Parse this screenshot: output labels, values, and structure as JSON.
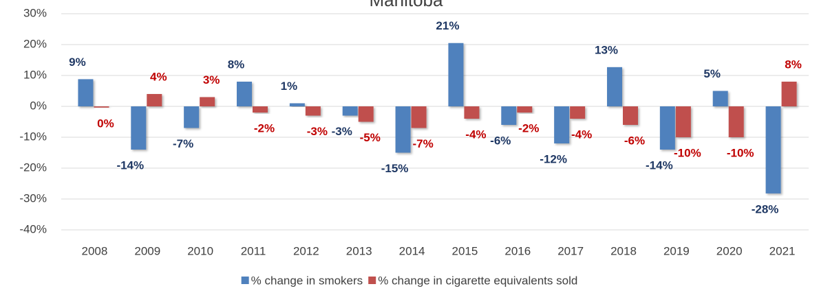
{
  "chart_data": {
    "type": "bar",
    "title": "Manitoba",
    "categories": [
      "2008",
      "2009",
      "2010",
      "2011",
      "2012",
      "2013",
      "2014",
      "2015",
      "2016",
      "2017",
      "2018",
      "2019",
      "2020",
      "2021"
    ],
    "series": [
      {
        "name": "% change in smokers",
        "color": "#4f81bd",
        "label_color": "#1f3864",
        "values": [
          8.8,
          -14,
          -7,
          8,
          1,
          -3,
          -15,
          20.5,
          -6,
          -12,
          12.7,
          -14,
          5,
          -28.2
        ],
        "value_labels": [
          "9%",
          "-14%",
          "-7%",
          "8%",
          "1%",
          "-3%",
          "-15%",
          "21%",
          "-6%",
          "-12%",
          "13%",
          "-14%",
          "5%",
          "-28%"
        ]
      },
      {
        "name": "% change in cigarette equivalents sold",
        "color": "#c0504d",
        "label_color": "#c00000",
        "values": [
          -0.4,
          4,
          3,
          -2,
          -3,
          -5,
          -7,
          -4,
          -2,
          -4,
          -6,
          -10,
          -10,
          8
        ],
        "value_labels": [
          "0%",
          "4%",
          "3%",
          "-2%",
          "-3%",
          "-5%",
          "-7%",
          "-4%",
          "-2%",
          "-4%",
          "-6%",
          "-10%",
          "-10%",
          "8%"
        ]
      }
    ],
    "ylim": [
      -40,
      30
    ],
    "yticks": [
      {
        "value": -40,
        "label": "-40%"
      },
      {
        "value": -30,
        "label": "-30%"
      },
      {
        "value": -20,
        "label": "-20%"
      },
      {
        "value": -10,
        "label": "-10%"
      },
      {
        "value": 0,
        "label": "0%"
      },
      {
        "value": 10,
        "label": "10%"
      },
      {
        "value": 20,
        "label": "20%"
      },
      {
        "value": 30,
        "label": "30%"
      }
    ],
    "grid": true,
    "legend": "bottom"
  }
}
